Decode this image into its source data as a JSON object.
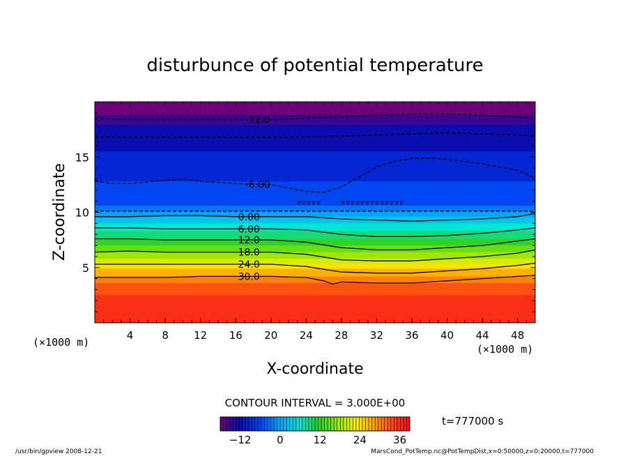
{
  "chart_data": {
    "type": "heatmap",
    "title": "disturbunce of potential temperature",
    "xlabel": "X-coordinate",
    "ylabel": "Z-coordinate",
    "x_unit_left": "(×1000 m)",
    "x_unit_right": "(×1000 m)",
    "xlim": [
      0,
      50
    ],
    "ylim": [
      0,
      20
    ],
    "x_ticks": [
      4,
      8,
      12,
      16,
      20,
      24,
      28,
      32,
      36,
      40,
      44,
      48
    ],
    "y_ticks": [
      5,
      10,
      15
    ],
    "contour_interval_text": "CONTOUR INTERVAL = 3.000E+00",
    "time_label": "t=777000 s",
    "colorbar": {
      "range": [
        -18,
        39
      ],
      "ticks": [
        -12,
        0,
        12,
        24,
        36
      ]
    },
    "grid": false,
    "bands": [
      {
        "value": -18,
        "z": 20
      },
      {
        "value": -15,
        "z": 18.8
      },
      {
        "value": -12,
        "z": 17.9
      },
      {
        "value": -9,
        "z": 15.5
      },
      {
        "value": -6,
        "z": 12.8
      },
      {
        "value": -3,
        "z": 10.6
      },
      {
        "value": 0,
        "z": 10.1
      },
      {
        "value": 3,
        "z": 9.6
      },
      {
        "value": 6,
        "z": 9.0
      },
      {
        "value": 9,
        "z": 8.3
      },
      {
        "value": 12,
        "z": 7.6
      },
      {
        "value": 15,
        "z": 7.0
      },
      {
        "value": 18,
        "z": 6.4
      },
      {
        "value": 21,
        "z": 5.8
      },
      {
        "value": 24,
        "z": 5.3
      },
      {
        "value": 27,
        "z": 4.9
      },
      {
        "value": 30,
        "z": 4.2
      },
      {
        "value": 33,
        "z": 3.6
      },
      {
        "value": 36,
        "z": 2.5
      }
    ],
    "contours": [
      {
        "value": -12,
        "label": "-12.0",
        "dashed": true,
        "label_x": 18.5,
        "x": [
          0,
          4,
          8,
          12,
          16,
          20,
          24,
          28,
          32,
          36,
          40,
          44,
          48,
          50
        ],
        "z": [
          18.5,
          18.4,
          18.4,
          18.4,
          18.4,
          18.4,
          18.5,
          18.6,
          18.8,
          18.9,
          18.9,
          18.8,
          18.6,
          18.5
        ]
      },
      {
        "value": -9,
        "label": "",
        "dashed": true,
        "label_x": null,
        "x": [
          0,
          4,
          8,
          12,
          16,
          20,
          24,
          28,
          32,
          36,
          40,
          44,
          48,
          50
        ],
        "z": [
          16.8,
          16.8,
          16.8,
          16.8,
          16.8,
          16.8,
          16.8,
          16.9,
          17.0,
          17.1,
          17.2,
          17.1,
          17.0,
          16.9
        ]
      },
      {
        "value": -6,
        "label": "-6.00",
        "dashed": true,
        "label_x": 18.5,
        "x": [
          0,
          2,
          4,
          8,
          10,
          12,
          16,
          20,
          24,
          26,
          28,
          30,
          32,
          34,
          36,
          38,
          40,
          44,
          48,
          50
        ],
        "z": [
          12.8,
          12.6,
          12.6,
          12.9,
          13.0,
          12.8,
          12.6,
          12.5,
          11.9,
          11.8,
          12.3,
          13.2,
          14.1,
          14.6,
          14.9,
          14.9,
          14.8,
          14.4,
          13.8,
          13.1
        ]
      },
      {
        "value": -3,
        "label": "",
        "dashed": true,
        "label_x": null,
        "x": [
          0,
          10,
          20,
          30,
          40,
          50
        ],
        "z": [
          10.1,
          10.1,
          10.1,
          10.1,
          10.1,
          10.1
        ]
      },
      {
        "value": 0,
        "label": "0.00",
        "dashed": false,
        "label_x": 17.5,
        "x": [
          0,
          4,
          8,
          12,
          16,
          20,
          24,
          28,
          32,
          36,
          40,
          44,
          48,
          50
        ],
        "z": [
          9.6,
          9.6,
          9.7,
          9.7,
          9.6,
          9.6,
          9.6,
          9.4,
          9.3,
          9.2,
          9.3,
          9.4,
          9.6,
          9.9
        ]
      },
      {
        "value": 6,
        "label": "6.00",
        "dashed": false,
        "label_x": 17.5,
        "x": [
          0,
          4,
          8,
          12,
          16,
          20,
          24,
          28,
          32,
          36,
          40,
          44,
          48,
          50
        ],
        "z": [
          8.6,
          8.6,
          8.5,
          8.5,
          8.5,
          8.5,
          8.4,
          8.0,
          7.8,
          7.8,
          7.9,
          8.1,
          8.4,
          8.6
        ]
      },
      {
        "value": 12,
        "label": "12.0",
        "dashed": false,
        "label_x": 17.5,
        "x": [
          0,
          4,
          8,
          12,
          16,
          20,
          24,
          28,
          32,
          36,
          40,
          44,
          48,
          50
        ],
        "z": [
          7.6,
          7.6,
          7.5,
          7.5,
          7.5,
          7.5,
          7.3,
          6.8,
          6.6,
          6.6,
          6.8,
          7.0,
          7.4,
          7.6
        ]
      },
      {
        "value": 18,
        "label": "18.0",
        "dashed": false,
        "label_x": 17.5,
        "x": [
          0,
          4,
          8,
          12,
          16,
          20,
          24,
          28,
          32,
          36,
          40,
          44,
          48,
          50
        ],
        "z": [
          6.4,
          6.5,
          6.4,
          6.4,
          6.4,
          6.4,
          6.2,
          5.7,
          5.6,
          5.6,
          5.8,
          6.0,
          6.3,
          6.6
        ]
      },
      {
        "value": 24,
        "label": "24.0",
        "dashed": false,
        "label_x": 17.5,
        "x": [
          0,
          4,
          8,
          12,
          16,
          20,
          24,
          28,
          32,
          36,
          40,
          44,
          48,
          50
        ],
        "z": [
          5.3,
          5.3,
          5.3,
          5.3,
          5.3,
          5.3,
          5.1,
          4.6,
          4.5,
          4.5,
          4.7,
          4.9,
          5.2,
          5.4
        ]
      },
      {
        "value": 30,
        "label": "30.0",
        "dashed": false,
        "label_x": 17.5,
        "x": [
          0,
          4,
          8,
          12,
          16,
          20,
          24,
          26,
          27,
          28,
          32,
          36,
          40,
          44,
          48,
          50
        ],
        "z": [
          4.1,
          4.1,
          4.1,
          4.2,
          4.2,
          4.2,
          4.1,
          3.8,
          3.5,
          3.7,
          3.6,
          3.6,
          3.8,
          4.0,
          4.2,
          4.3
        ]
      }
    ],
    "extra_dashed_segments": [
      {
        "x": [
          23.0,
          25.6
        ],
        "z": [
          10.95,
          10.95
        ]
      },
      {
        "x": [
          28.0,
          35.0
        ],
        "z": [
          10.95,
          10.95
        ]
      }
    ]
  },
  "footer": {
    "left": "/usr/bin/gpview   2008-12-21",
    "right": "MarsCond_PotTemp.nc@PotTempDist,x=0:50000,z=0:20000,t=777000"
  }
}
